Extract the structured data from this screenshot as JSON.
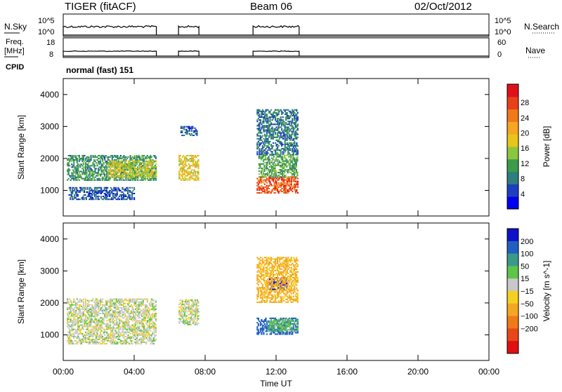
{
  "header": {
    "title": "TIGER (fitACF)",
    "beam": "Beam 06",
    "date": "02/Oct/2012"
  },
  "strips": {
    "nsky_label": "N.Sky",
    "freq_label_1": "Freq.",
    "freq_label_2": "[MHz]",
    "cpid_label": "CPID",
    "nsearch_label": "N.Search",
    "nave_label": "Nave",
    "left_log_top": "10^5",
    "left_log_bottom": "10^0",
    "right_log_top": "10^5",
    "right_log_bottom": "10^0",
    "freq_top": "18",
    "freq_bottom": "8",
    "nave_top": "60",
    "nave_bottom": "0",
    "cpid_text": "normal (fast) 151"
  },
  "chart_data": [
    {
      "type": "heatmap",
      "panel": "power",
      "ylabel": "Slant Range [km]",
      "xlabel": "",
      "xlim": [
        0,
        24
      ],
      "ylim": [
        200,
        4500
      ],
      "x_ticks": [
        "00:00",
        "04:00",
        "08:00",
        "12:00",
        "16:00",
        "20:00",
        "00:00"
      ],
      "y_ticks": [
        1000,
        2000,
        3000,
        4000
      ],
      "colorbar_label": "Power [dB]",
      "colorbar_ticks": [
        4,
        8,
        12,
        16,
        20,
        24,
        28
      ],
      "colorbar_colors": [
        "#0000ee",
        "#1e3fbf",
        "#2f7d7d",
        "#3b9c4a",
        "#8cc63f",
        "#e8c51a",
        "#f5a623",
        "#f07a1a",
        "#e8401a",
        "#e0101a"
      ],
      "data_intervals_hours": [
        [
          0.0,
          5.25
        ],
        [
          6.5,
          7.65
        ],
        [
          10.7,
          13.3
        ]
      ],
      "echo_regions": [
        {
          "t0": 0.2,
          "t1": 5.2,
          "r0": 1300,
          "r1": 2100,
          "level": 10
        },
        {
          "t0": 0.3,
          "t1": 4.0,
          "r0": 700,
          "r1": 1100,
          "level": 6
        },
        {
          "t0": 2.5,
          "t1": 5.2,
          "r0": 1400,
          "r1": 1900,
          "level": 16
        },
        {
          "t0": 6.5,
          "t1": 7.6,
          "r0": 1300,
          "r1": 2100,
          "level": 18
        },
        {
          "t0": 6.6,
          "t1": 7.5,
          "r0": 2700,
          "r1": 3000,
          "level": 6
        },
        {
          "t0": 10.9,
          "t1": 13.2,
          "r0": 900,
          "r1": 1400,
          "level": 26
        },
        {
          "t0": 11.0,
          "t1": 13.2,
          "r0": 1400,
          "r1": 2100,
          "level": 12
        },
        {
          "t0": 10.9,
          "t1": 13.2,
          "r0": 2100,
          "r1": 3500,
          "level": 8
        }
      ]
    },
    {
      "type": "heatmap",
      "panel": "velocity",
      "ylabel": "Slant Range [km]",
      "xlabel": "Time UT",
      "xlim": [
        0,
        24
      ],
      "ylim": [
        200,
        4500
      ],
      "x_ticks": [
        "00:00",
        "04:00",
        "08:00",
        "12:00",
        "16:00",
        "20:00",
        "00:00"
      ],
      "y_ticks": [
        1000,
        2000,
        3000,
        4000
      ],
      "colorbar_label": "Velocity [m s^-1]",
      "colorbar_ticks": [
        "200",
        "100",
        "50",
        "15",
        "−15",
        "−50",
        "−100",
        "−200"
      ],
      "colorbar_colors": [
        "#1010c8",
        "#2060c0",
        "#3a9a8a",
        "#5fc44a",
        "#c8c8c8",
        "#f5d020",
        "#f5a623",
        "#f07a1a",
        "#e84818",
        "#e01010"
      ],
      "data_intervals_hours": [
        [
          0.0,
          5.25
        ],
        [
          6.5,
          7.65
        ],
        [
          10.7,
          13.3
        ]
      ],
      "echo_regions": [
        {
          "t0": 0.2,
          "t1": 5.2,
          "r0": 700,
          "r1": 2100,
          "level": 0
        },
        {
          "t0": 6.5,
          "t1": 7.6,
          "r0": 1300,
          "r1": 2100,
          "level": 0
        },
        {
          "t0": 10.9,
          "t1": 13.2,
          "r0": 1000,
          "r1": 1500,
          "level": 150
        },
        {
          "t0": 11.5,
          "t1": 13.2,
          "r0": 1100,
          "r1": 1500,
          "level": 40
        },
        {
          "t0": 11.6,
          "t1": 12.6,
          "r0": 2400,
          "r1": 2800,
          "level": 220
        },
        {
          "t0": 10.9,
          "t1": 13.2,
          "r0": 2000,
          "r1": 3400,
          "level": -60
        }
      ]
    }
  ]
}
